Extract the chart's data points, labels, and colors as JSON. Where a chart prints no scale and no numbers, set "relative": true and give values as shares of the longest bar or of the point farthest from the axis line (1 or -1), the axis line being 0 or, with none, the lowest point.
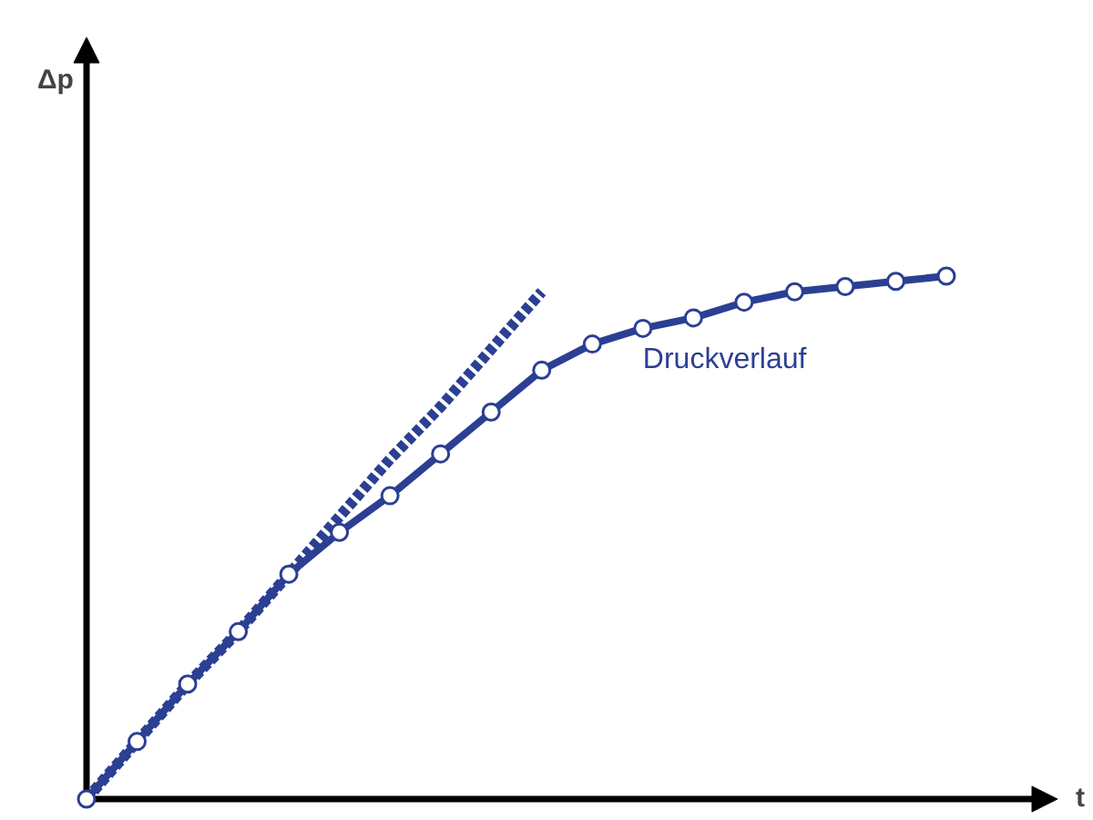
{
  "chart_data": {
    "type": "line",
    "relative": true,
    "xlabel": "t",
    "annotations": [
      "Δp"
    ],
    "grid": false,
    "categories": [
      null,
      null,
      null,
      null,
      null,
      null,
      null,
      null,
      null,
      null,
      null,
      null,
      null,
      null,
      null,
      null,
      null,
      null
    ],
    "series": [
      {
        "color": "#2b3f93",
        "marker": "none",
        "line_style": "dashed",
        "values": [
          0,
          0.11,
          0.22,
          0.32,
          0.43,
          0.54,
          0.65,
          0.75,
          0.86,
          0.97,
          null,
          null,
          null,
          null,
          null,
          null,
          null,
          null
        ]
      },
      {
        "name": "Druckverlauf",
        "color": "#2b3f93",
        "marker": "circle",
        "line_style": "solid",
        "values": [
          0,
          0.11,
          0.22,
          0.32,
          0.43,
          0.51,
          0.58,
          0.66,
          0.74,
          0.82,
          0.87,
          0.9,
          0.92,
          0.95,
          0.97,
          0.98,
          0.99,
          1.0
        ]
      }
    ]
  }
}
